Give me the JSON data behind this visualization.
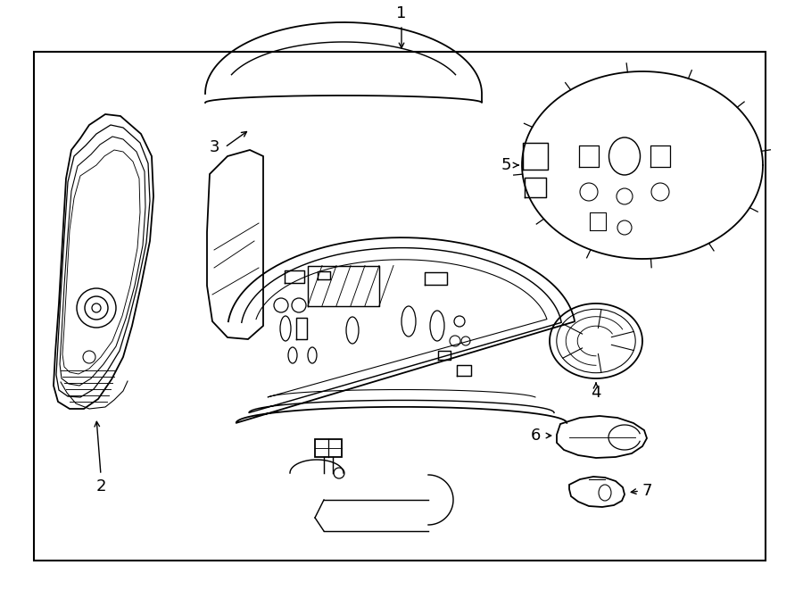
{
  "bg_color": "#ffffff",
  "border_color": "#000000",
  "line_color": "#000000",
  "label_color": "#000000",
  "figsize": [
    9.0,
    6.61
  ],
  "dpi": 100,
  "border": [
    38,
    58,
    858,
    628
  ]
}
